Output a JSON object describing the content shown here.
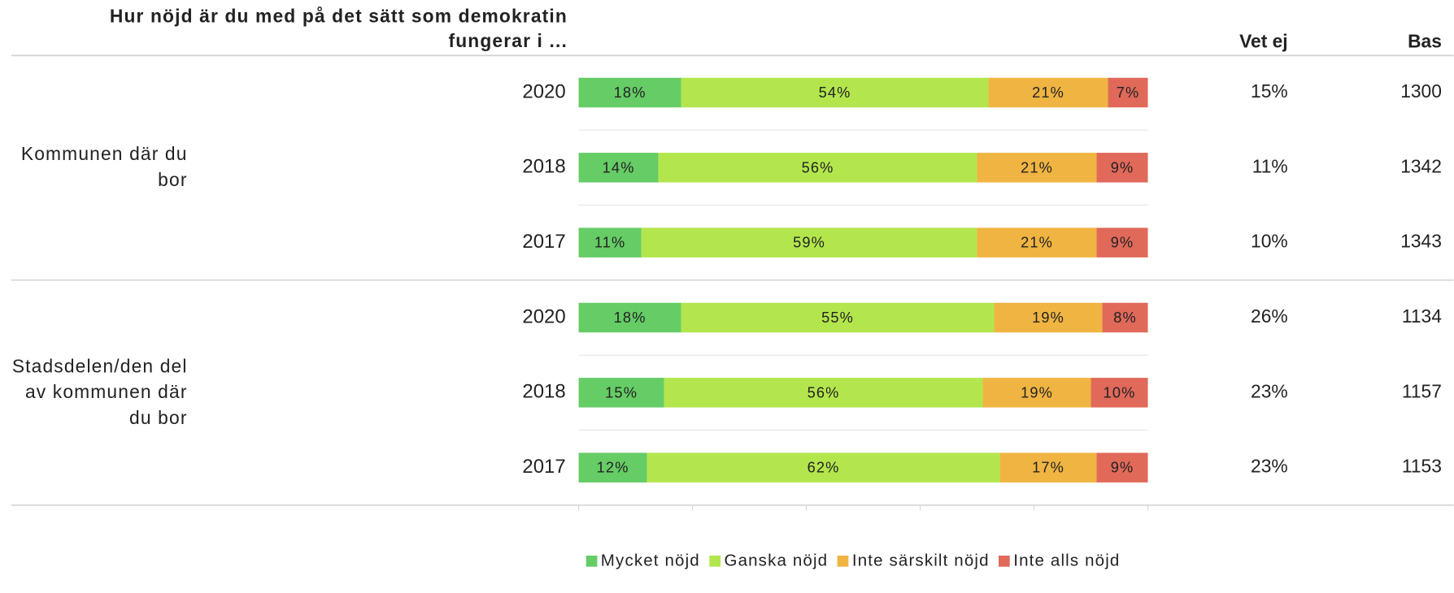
{
  "chart_data": {
    "type": "stacked-bar",
    "title": "Hur nöjd är du med på det sätt som demokratin fungerar i ...",
    "groups": [
      {
        "name": "Kommunen där du bor",
        "categories": [
          "2020",
          "2018",
          "2017"
        ]
      },
      {
        "name": "Stadsdelen/den del av kommunen där du bor",
        "categories": [
          "2020",
          "2018",
          "2017"
        ]
      }
    ],
    "series": [
      {
        "name": "Mycket nöjd",
        "color": "#66cc66",
        "values": [
          18,
          14,
          11,
          18,
          15,
          12
        ],
        "value_labels": [
          "18%",
          "14%",
          "11%",
          "18%",
          "15%",
          "12%"
        ]
      },
      {
        "name": "Ganska nöjd",
        "color": "#b3e64d",
        "values": [
          54,
          56,
          59,
          55,
          56,
          62
        ],
        "value_labels": [
          "54%",
          "56%",
          "59%",
          "55%",
          "56%",
          "62%"
        ]
      },
      {
        "name": "Inte särskilt nöjd",
        "color": "#f0b442",
        "values": [
          21,
          21,
          21,
          19,
          19,
          17
        ],
        "value_labels": [
          "21%",
          "21%",
          "21%",
          "19%",
          "19%",
          "17%"
        ]
      },
      {
        "name": "Inte alls nöjd",
        "color": "#e0695a",
        "values": [
          7,
          9,
          9,
          8,
          10,
          9
        ],
        "value_labels": [
          "7%",
          "9%",
          "9%",
          "8%",
          "10%",
          "9%"
        ]
      }
    ],
    "vet_ej": {
      "name": "Vet ej",
      "values": [
        15,
        11,
        10,
        26,
        23,
        23
      ],
      "value_labels": [
        "15%",
        "11%",
        "10%",
        "26%",
        "23%",
        "23%"
      ]
    },
    "bas": {
      "name": "Bas",
      "values": [
        1300,
        1342,
        1343,
        1134,
        1157,
        1153
      ]
    },
    "xlim": [
      0,
      100
    ],
    "xticks": [
      0,
      20,
      40,
      60,
      80,
      100
    ]
  }
}
